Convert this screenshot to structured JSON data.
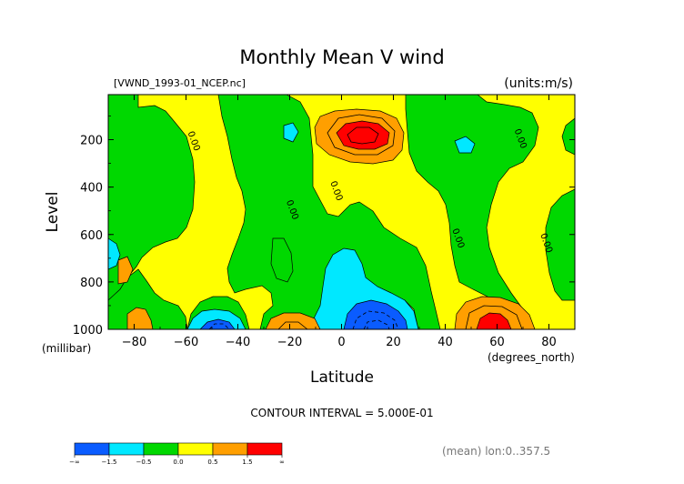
{
  "chart_data": {
    "type": "contour",
    "title": "Monthly Mean V wind",
    "file_label": "[VWND_1993-01_NCEP.nc]",
    "units_label": "(units:m/s)",
    "xlabel": "Latitude",
    "x_units": "(degrees_north)",
    "ylabel": "Level",
    "y_units": "(millibar)",
    "xlim": [
      -90,
      90
    ],
    "ylim": [
      1000,
      10
    ],
    "y_reversed": true,
    "x_ticks": [
      -80,
      -60,
      -40,
      -20,
      0,
      20,
      40,
      60,
      80
    ],
    "y_ticks": [
      200,
      400,
      600,
      800,
      1000
    ],
    "contour_interval_text": "CONTOUR INTERVAL = 5.000E-01",
    "footnote": "(mean) lon:0..357.5",
    "contour_labels": [
      {
        "text": "0.00",
        "x": -58,
        "y": 210
      },
      {
        "text": "0.00",
        "x": -20,
        "y": 500
      },
      {
        "text": "0.00",
        "x": -3,
        "y": 420
      },
      {
        "text": "0.00",
        "x": 44,
        "y": 620
      },
      {
        "text": "0.00",
        "x": 68,
        "y": 200
      },
      {
        "text": "0.00",
        "x": 78,
        "y": 640
      }
    ],
    "regions": [
      {
        "name": "yellow-background",
        "band": "0.0 to 0.5"
      },
      {
        "name": "green-band-west",
        "band": "-0.5 to 0.0"
      },
      {
        "name": "green-band-mid",
        "band": "-0.5 to 0.0"
      },
      {
        "name": "green-band-east",
        "band": "-0.5 to 0.0"
      },
      {
        "name": "upper-jet-max",
        "band": "> 1.5",
        "center": [
          8,
          160
        ]
      },
      {
        "name": "surface-max-60N",
        "band": "> 1.5",
        "center": [
          57,
          980
        ]
      },
      {
        "name": "surface-min-10N",
        "band": "< -1.5",
        "center": [
          10,
          980
        ]
      },
      {
        "name": "surface-min-50S",
        "band": "< -1.5",
        "center": [
          -48,
          990
        ]
      }
    ],
    "legend": {
      "colors": [
        "#0a5cff",
        "#00e8ff",
        "#00d800",
        "#ffff00",
        "#ff9f00",
        "#ff0000"
      ],
      "labels": [
        "-∞",
        "-1.5",
        "-0.5",
        "0.0",
        "0.5",
        "1.5",
        "∞"
      ]
    }
  }
}
